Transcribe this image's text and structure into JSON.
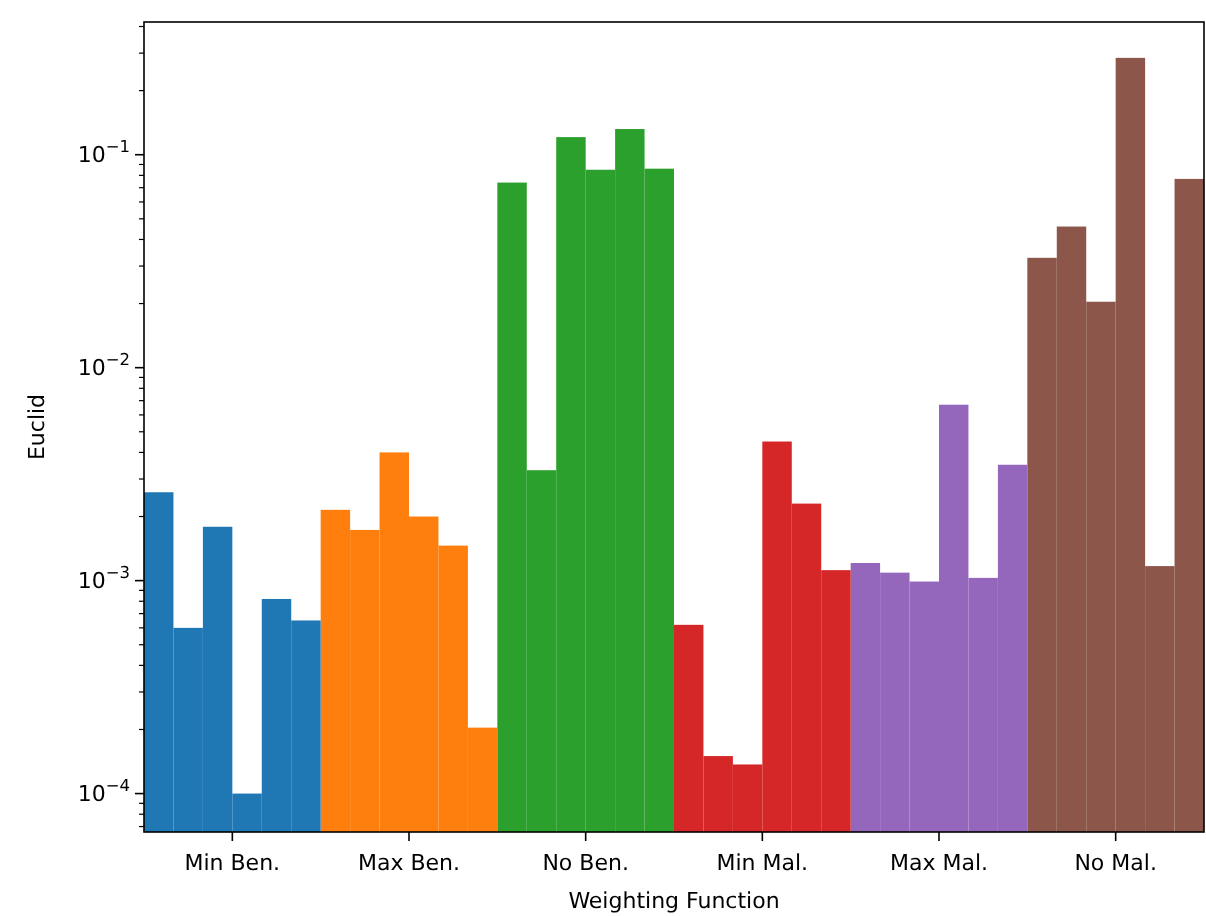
{
  "chart_data": {
    "type": "bar",
    "xlabel": "Weighting Function",
    "ylabel": "Euclid",
    "categories": [
      "Min Ben.",
      "Max Ben.",
      "No Ben.",
      "Min Mal.",
      "Max Mal.",
      "No Mal."
    ],
    "series": [
      {
        "colors": [
          "#1f77b4",
          "#ff7f0e",
          "#2ca02c",
          "#d62728",
          "#9467bd",
          "#8c564b"
        ],
        "values": [
          0.0026,
          0.00215,
          0.074,
          0.00062,
          0.00121,
          0.0328
        ]
      },
      {
        "colors": [
          "#1f77b4",
          "#ff7f0e",
          "#2ca02c",
          "#d62728",
          "#9467bd",
          "#8c564b"
        ],
        "values": [
          0.0006,
          0.00173,
          0.0033,
          0.00015,
          0.00109,
          0.046
        ]
      },
      {
        "colors": [
          "#1f77b4",
          "#ff7f0e",
          "#2ca02c",
          "#d62728",
          "#9467bd",
          "#8c564b"
        ],
        "values": [
          0.00179,
          0.004,
          0.121,
          0.000137,
          0.00099,
          0.0204
        ]
      },
      {
        "colors": [
          "#1f77b4",
          "#ff7f0e",
          "#2ca02c",
          "#d62728",
          "#9467bd",
          "#8c564b"
        ],
        "values": [
          0.0001,
          0.002,
          0.085,
          0.0045,
          0.0067,
          0.285
        ]
      },
      {
        "colors": [
          "#1f77b4",
          "#ff7f0e",
          "#2ca02c",
          "#d62728",
          "#9467bd",
          "#8c564b"
        ],
        "values": [
          0.00082,
          0.00146,
          0.132,
          0.0023,
          0.00103,
          0.00117
        ]
      },
      {
        "colors": [
          "#1f77b4",
          "#ff7f0e",
          "#2ca02c",
          "#d62728",
          "#9467bd",
          "#8c564b"
        ],
        "values": [
          0.00065,
          0.000204,
          0.086,
          0.00112,
          0.0035,
          0.077
        ]
      }
    ],
    "log": true,
    "ylim": [
      6.6e-05,
      0.42
    ],
    "yticks": [
      {
        "value": 7e-05,
        "label": null
      },
      {
        "value": 8e-05,
        "label": null
      },
      {
        "value": 9e-05,
        "label": null
      },
      {
        "value": 0.0001,
        "label": "10$^{−4}$"
      },
      {
        "value": 0.0002,
        "label": null
      },
      {
        "value": 0.0003,
        "label": null
      },
      {
        "value": 0.0004,
        "label": null
      },
      {
        "value": 0.0005,
        "label": null
      },
      {
        "value": 0.0006,
        "label": null
      },
      {
        "value": 0.0007,
        "label": null
      },
      {
        "value": 0.0008,
        "label": null
      },
      {
        "value": 0.0009,
        "label": null
      },
      {
        "value": 0.001,
        "label": "10$^{−3}$"
      },
      {
        "value": 0.002,
        "label": null
      },
      {
        "value": 0.003,
        "label": null
      },
      {
        "value": 0.004,
        "label": null
      },
      {
        "value": 0.005,
        "label": null
      },
      {
        "value": 0.006,
        "label": null
      },
      {
        "value": 0.007,
        "label": null
      },
      {
        "value": 0.008,
        "label": null
      },
      {
        "value": 0.009,
        "label": null
      },
      {
        "value": 0.01,
        "label": "10$^{−2}$"
      },
      {
        "value": 0.02,
        "label": null
      },
      {
        "value": 0.03,
        "label": null
      },
      {
        "value": 0.04,
        "label": null
      },
      {
        "value": 0.05,
        "label": null
      },
      {
        "value": 0.06,
        "label": null
      },
      {
        "value": 0.07,
        "label": null
      },
      {
        "value": 0.08,
        "label": null
      },
      {
        "value": 0.09,
        "label": null
      },
      {
        "value": 0.1,
        "label": "10$^{−1}$"
      },
      {
        "value": 0.2,
        "label": null
      },
      {
        "value": 0.3,
        "label": null
      },
      {
        "value": 0.4,
        "label": null
      }
    ]
  }
}
